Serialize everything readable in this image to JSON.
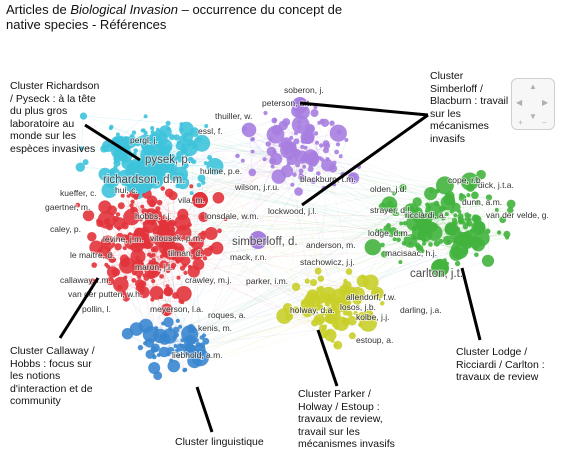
{
  "title": {
    "prefix": "Articles de ",
    "italic": "Biological Invasion",
    "rest": " – occurrence du concept de native species - Références"
  },
  "annotations": {
    "richardson": "Cluster Richardson / Pyseck : à la tête du plus gros laboratoire au monde sur les espèces invasives",
    "simberloff": "Cluster Simberloff / Blacburn : travail sur les mécanismes invasifs",
    "callaway": "Cluster Callaway / Hobbs : focus sur les notions d'interaction et de community",
    "linguistique": "Cluster linguistique",
    "parker": "Cluster Parker / Holway / Estoup : travaux de review, travail sur les mécanismes invasifs",
    "lodge": "Cluster Lodge / Ricciardi / Carlton : travaux de review"
  },
  "clusters": {
    "cyan": {
      "color": "#3ec3db"
    },
    "red": {
      "color": "#e2333b"
    },
    "purple": {
      "color": "#a77ee0"
    },
    "green": {
      "color": "#43b43e"
    },
    "yellow": {
      "color": "#c9cf2a"
    },
    "blue": {
      "color": "#3a86cf"
    }
  },
  "labels": [
    {
      "text": "richardson, d.m.",
      "cluster": "cyan",
      "big": true
    },
    {
      "text": "pysek, p.",
      "cluster": "cyan",
      "big": true
    },
    {
      "text": "simberloff, d.",
      "cluster": "purple",
      "big": true
    },
    {
      "text": "carlton, j.t.",
      "cluster": "green",
      "big": true
    },
    {
      "text": "vila, m.",
      "cluster": "red"
    },
    {
      "text": "hobbs, r.j.",
      "cluster": "red"
    },
    {
      "text": "lonsdale, w.m.",
      "cluster": "red"
    },
    {
      "text": "vitousek, p.m.",
      "cluster": "red"
    },
    {
      "text": "callaway, r.m.",
      "cluster": "red"
    },
    {
      "text": "van der putten, w.h.",
      "cluster": "red"
    },
    {
      "text": "crawley, m.j.",
      "cluster": "red"
    },
    {
      "text": "mack, r.n.",
      "cluster": "red"
    },
    {
      "text": "maron, j.l.",
      "cluster": "red"
    },
    {
      "text": "levine, j.m.",
      "cluster": "red"
    },
    {
      "text": "tilman, d.",
      "cluster": "red"
    },
    {
      "text": "pollin, l.",
      "cluster": "red"
    },
    {
      "text": "meyerson, l.a.",
      "cluster": "red"
    },
    {
      "text": "parker, i.m.",
      "cluster": "red"
    },
    {
      "text": "lockwood, j.l.",
      "cluster": "purple"
    },
    {
      "text": "peterson, a.t.",
      "cluster": "purple"
    },
    {
      "text": "thuiller, w.",
      "cluster": "purple"
    },
    {
      "text": "blackburn, t.m.",
      "cluster": "purple"
    },
    {
      "text": "sober​on, j.",
      "cluster": "purple"
    },
    {
      "text": "olden, j.d.",
      "cluster": "green"
    },
    {
      "text": "strayer, d.l.",
      "cluster": "green"
    },
    {
      "text": "ricciardi, a.",
      "cluster": "green"
    },
    {
      "text": "lodge, d.m.",
      "cluster": "green"
    },
    {
      "text": "dick, j.t.a.",
      "cluster": "green"
    },
    {
      "text": "van der velde, g.",
      "cluster": "green"
    },
    {
      "text": "macisaac, h.j.",
      "cluster": "green"
    },
    {
      "text": "cope, r.b.",
      "cluster": "green"
    },
    {
      "text": "dunn, a.m.",
      "cluster": "green"
    },
    {
      "text": "stachowicz, j.j.",
      "cluster": "green"
    },
    {
      "text": "anderson, m.",
      "cluster": "green"
    },
    {
      "text": "allendorf, f.w.",
      "cluster": "yellow"
    },
    {
      "text": "holway, d.a.",
      "cluster": "yellow"
    },
    {
      "text": "estoup, a.",
      "cluster": "yellow"
    },
    {
      "text": "kolbe, j.j.",
      "cluster": "yellow"
    },
    {
      "text": "losos, j.b.",
      "cluster": "yellow"
    },
    {
      "text": "darling, j.a.",
      "cluster": "yellow"
    },
    {
      "text": "liebhold, a.m.",
      "cluster": "blue"
    },
    {
      "text": "kenis, m.",
      "cluster": "blue"
    },
    {
      "text": "roques, a.",
      "cluster": "blue"
    },
    {
      "text": "hulme, p.e.",
      "cluster": "cyan"
    },
    {
      "text": "essl, f.",
      "cluster": "cyan"
    },
    {
      "text": "pergl, j.",
      "cluster": "cyan"
    },
    {
      "text": "kueffer, c.",
      "cluster": "cyan"
    },
    {
      "text": "gaertner, m.",
      "cluster": "cyan"
    },
    {
      "text": "caley, p.",
      "cluster": "cyan"
    },
    {
      "text": "hui, c.",
      "cluster": "cyan"
    },
    {
      "text": "le maitre, d.",
      "cluster": "cyan"
    },
    {
      "text": "wilson, j.r.u.",
      "cluster": "cyan"
    }
  ]
}
